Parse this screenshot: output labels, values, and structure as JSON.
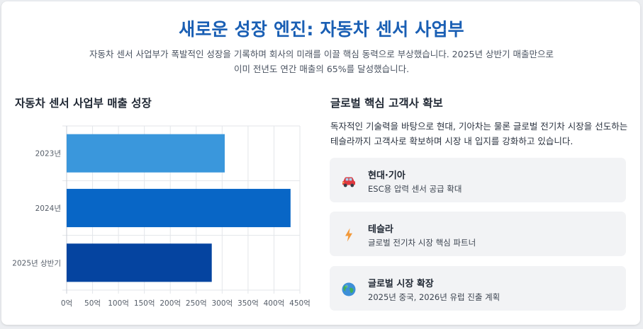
{
  "header": {
    "title": "새로운 성장 엔진: 자동차 센서 사업부",
    "subtitle": "자동차 센서 사업부가 폭발적인 성장을 기록하며 회사의 미래를 이끌 핵심 동력으로 부상했습니다. 2025년 상반기 매출만으로 이미 전년도 연간 매출의 65%를 달성했습니다."
  },
  "chart_section": {
    "title": "자동차 센서 사업부 매출 성장"
  },
  "chart_data": {
    "type": "bar",
    "orientation": "horizontal",
    "categories": [
      "2023년",
      "2024년",
      "2025년 상반기"
    ],
    "values": [
      305,
      432,
      280
    ],
    "xlim": [
      0,
      450
    ],
    "ticks": [
      "0억",
      "50억",
      "100억",
      "150억",
      "200억",
      "250억",
      "300억",
      "350억",
      "400억",
      "450억"
    ],
    "colors": [
      "#3a97dc",
      "#0866c6",
      "#0544a0"
    ],
    "grid": true
  },
  "customers_section": {
    "title": "글로벌 핵심 고객사 확보",
    "description": "독자적인 기술력을 바탕으로 현대, 기아차는 물론 글로벌 전기차 시장을 선도하는 테슬라까지 고객사로 확보하며 시장 내 입지를 강화하고 있습니다.",
    "items": [
      {
        "icon": "car-icon",
        "name": "현대·기아",
        "detail": "ESC용 압력 센서 공급 확대"
      },
      {
        "icon": "lightning-icon",
        "name": "테슬라",
        "detail": "글로벌 전기차 시장 핵심 파트너"
      },
      {
        "icon": "globe-icon",
        "name": "글로벌 시장 확장",
        "detail": "2025년 중국, 2026년 유럽 진출 계획"
      }
    ]
  }
}
